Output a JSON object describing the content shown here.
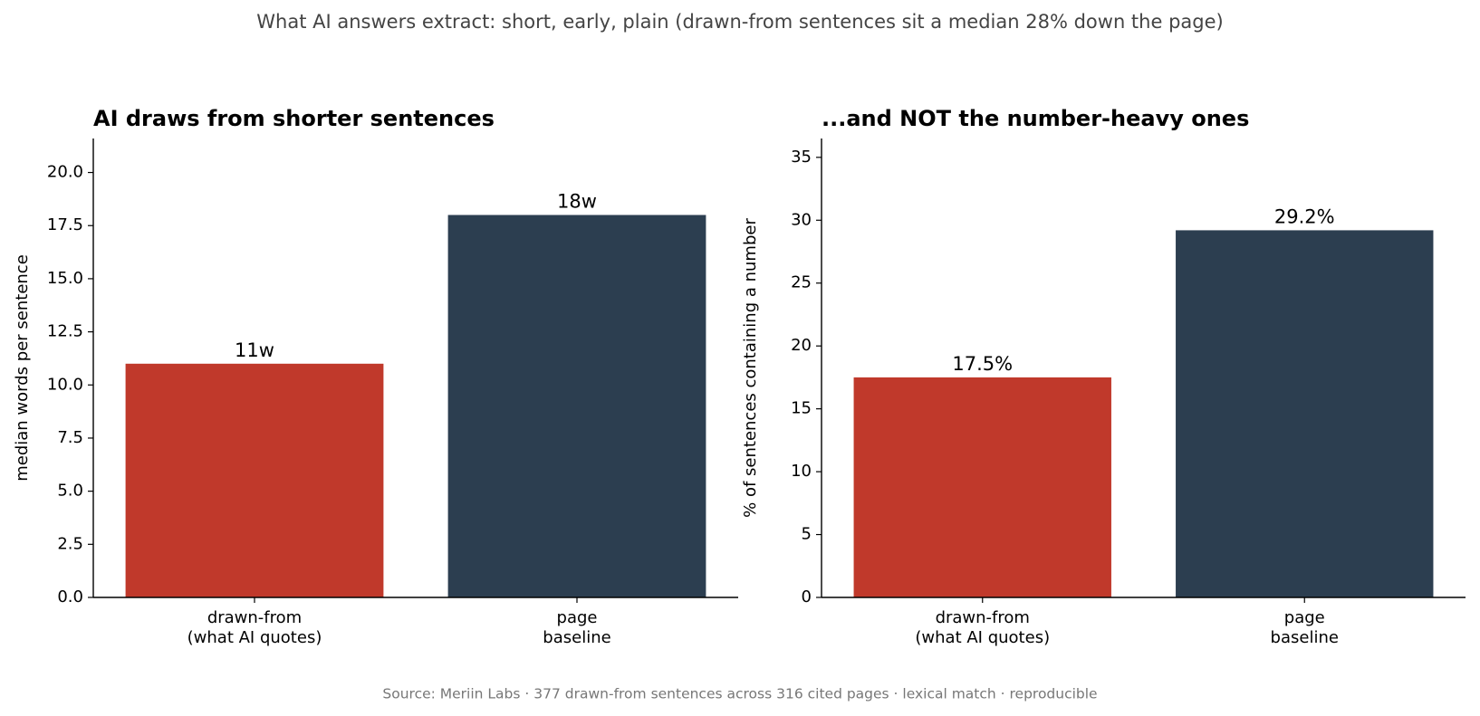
{
  "title": "What AI answers extract: short, early, plain  (drawn-from sentences sit a median 28% down the page)",
  "source": "Source: Meriin Labs · 377 drawn-from sentences across 316 cited pages · lexical match · reproducible",
  "chart_data": [
    {
      "type": "bar",
      "title": "AI draws from shorter sentences",
      "ylabel": "median words per sentence",
      "categories": [
        "drawn-from\n(what AI quotes)",
        "page\nbaseline"
      ],
      "values": [
        11,
        18
      ],
      "value_labels": [
        "11w",
        "18w"
      ],
      "colors": [
        "#c0392b",
        "#2c3e50"
      ],
      "ylim": [
        0,
        21.6
      ],
      "yticks": [
        {
          "value": 0,
          "label": "0.0"
        },
        2.5,
        {
          "value": 5,
          "label": "5.0"
        },
        7.5,
        {
          "value": 10,
          "label": "10.0"
        },
        12.5,
        {
          "value": 15,
          "label": "15.0"
        },
        17.5,
        {
          "value": 20,
          "label": "20.0"
        }
      ]
    },
    {
      "type": "bar",
      "title": "...and NOT the number-heavy ones",
      "ylabel": "% of sentences containing a number",
      "categories": [
        "drawn-from\n(what AI quotes)",
        "page\nbaseline"
      ],
      "values": [
        17.5,
        29.2
      ],
      "value_labels": [
        "17.5%",
        "29.2%"
      ],
      "colors": [
        "#c0392b",
        "#2c3e50"
      ],
      "ylim": [
        0,
        36.5
      ],
      "yticks": [
        0,
        5,
        10,
        15,
        20,
        25,
        30,
        35
      ]
    }
  ]
}
